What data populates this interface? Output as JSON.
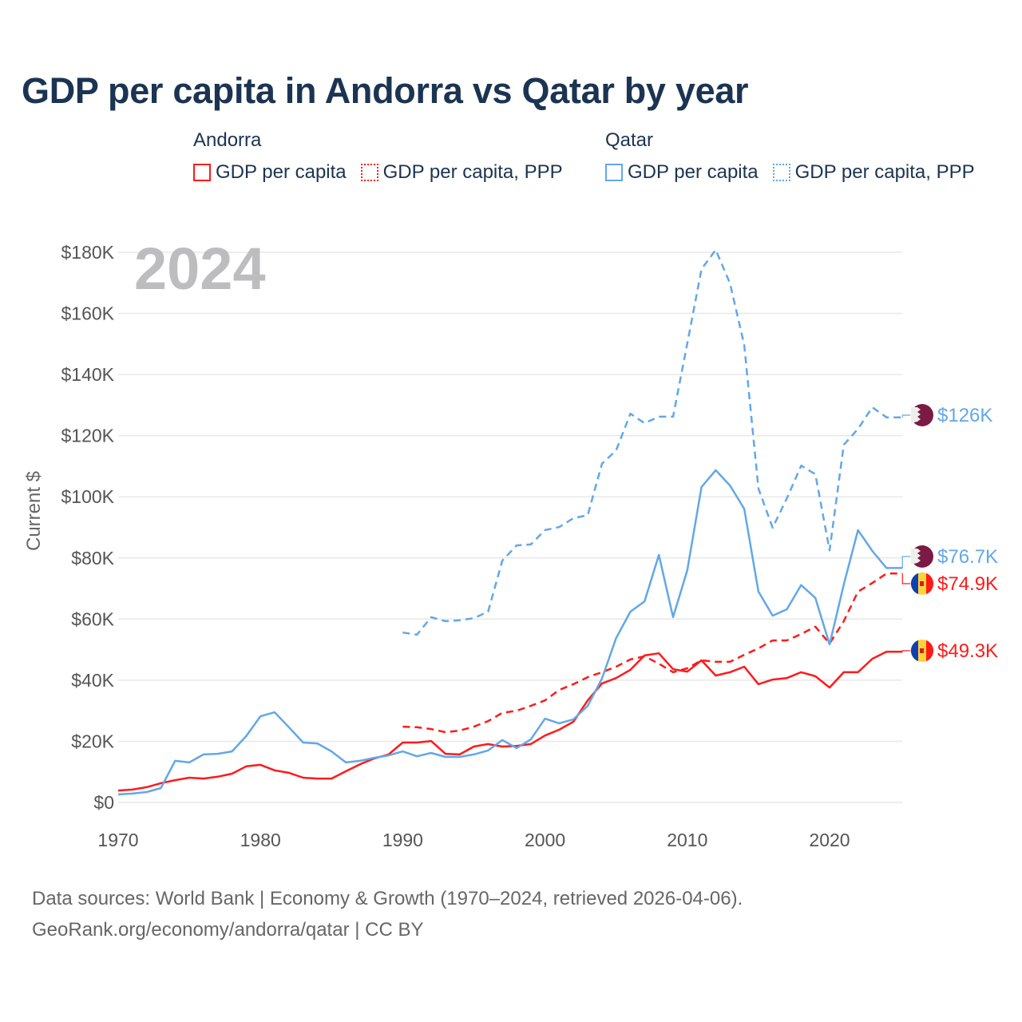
{
  "title": "GDP per capita in Andorra vs Qatar by year",
  "legend": {
    "andorra": {
      "heading": "Andorra",
      "items": [
        "GDP per capita",
        "GDP per capita, PPP"
      ]
    },
    "qatar": {
      "heading": "Qatar",
      "items": [
        "GDP per capita",
        "GDP per capita, PPP"
      ]
    }
  },
  "year_overlay": "2024",
  "footer": {
    "line1": "Data sources: World Bank | Economy & Growth (1970–2024, retrieved 2026-04-06).",
    "line2": "GeoRank.org/economy/andorra/qatar | CC BY"
  },
  "colors": {
    "andorra": "#ff1a1a",
    "qatar": "#63a7e8",
    "title": "#1b3452",
    "qatar_flag": "#7a1a45",
    "andorra_blue": "#1040b0",
    "andorra_yellow": "#ffd23a"
  },
  "chart_data": {
    "type": "line",
    "title": "GDP per capita in Andorra vs Qatar by year",
    "ylabel": "Current $",
    "xlabel": "",
    "xlim": [
      1970,
      2024
    ],
    "ylim": [
      0,
      180000
    ],
    "xticks": [
      1970,
      1980,
      1990,
      2000,
      2010,
      2020
    ],
    "xtick_labels": [
      "1970",
      "1980",
      "1990",
      "2000",
      "2010",
      "2020"
    ],
    "yticks": [
      0,
      20000,
      40000,
      60000,
      80000,
      100000,
      120000,
      140000,
      160000,
      180000
    ],
    "ytick_labels": [
      "$0",
      "$20K",
      "$40K",
      "$60K",
      "$80K",
      "$100K",
      "$120K",
      "$140K",
      "$160K",
      "$180K"
    ],
    "grid": true,
    "legend_position": "top",
    "series": [
      {
        "name": "Andorra GDP per capita",
        "country": "andorra",
        "style": "solid",
        "start_year": 1970,
        "end_label": "$49.3K",
        "values": [
          3900,
          4200,
          5000,
          6300,
          7300,
          8100,
          7800,
          8400,
          9400,
          11800,
          12300,
          10500,
          9700,
          8100,
          7800,
          7800,
          10200,
          12500,
          14400,
          15700,
          19600,
          19600,
          20100,
          15900,
          15700,
          18300,
          19100,
          18300,
          18500,
          19100,
          21900,
          23800,
          26400,
          33400,
          38900,
          40700,
          43400,
          48100,
          48800,
          43600,
          42800,
          46500,
          41500,
          42600,
          44400,
          38700,
          40200,
          40700,
          42600,
          41300,
          37600,
          42600,
          42600,
          47000,
          49300
        ]
      },
      {
        "name": "Andorra GDP per capita, PPP",
        "country": "andorra",
        "style": "dashed",
        "start_year": 1990,
        "end_label": "$74.9K",
        "values": [
          24800,
          24600,
          24000,
          23000,
          23500,
          24800,
          26600,
          29300,
          30000,
          31600,
          33400,
          36800,
          38700,
          41000,
          42600,
          44400,
          46800,
          47800,
          45400,
          42600,
          43900,
          46500,
          46000,
          46000,
          48300,
          50400,
          53000,
          53000,
          55100,
          57500,
          52000,
          59300,
          69000,
          71800,
          74900
        ]
      },
      {
        "name": "Qatar GDP per capita",
        "country": "qatar",
        "style": "solid",
        "start_year": 1970,
        "end_label": "$76.7K",
        "values": [
          2600,
          2900,
          3400,
          4700,
          13600,
          13100,
          15700,
          15900,
          16700,
          21700,
          28200,
          29500,
          24600,
          19600,
          19300,
          16700,
          13100,
          13600,
          14600,
          15400,
          16700,
          15100,
          16200,
          14900,
          14900,
          15700,
          17000,
          20400,
          17800,
          20600,
          27400,
          25900,
          27200,
          31600,
          40500,
          53800,
          62400,
          65800,
          81000,
          60600,
          76000,
          103200,
          108700,
          103700,
          96100,
          69000,
          61100,
          63200,
          71100,
          66900,
          51700,
          71300,
          89100,
          82300,
          76700
        ]
      },
      {
        "name": "Qatar GDP per capita, PPP",
        "country": "qatar",
        "style": "dashed",
        "start_year": 1990,
        "end_label": "$126K",
        "values": [
          55600,
          54900,
          60600,
          59300,
          59600,
          60300,
          62400,
          79100,
          84100,
          84400,
          89100,
          90100,
          93000,
          94000,
          110800,
          115200,
          127200,
          124100,
          126200,
          126200,
          150200,
          174500,
          180800,
          169800,
          149700,
          102700,
          89900,
          99500,
          110200,
          107400,
          82500,
          117000,
          122200,
          129300,
          126000
        ]
      }
    ]
  }
}
